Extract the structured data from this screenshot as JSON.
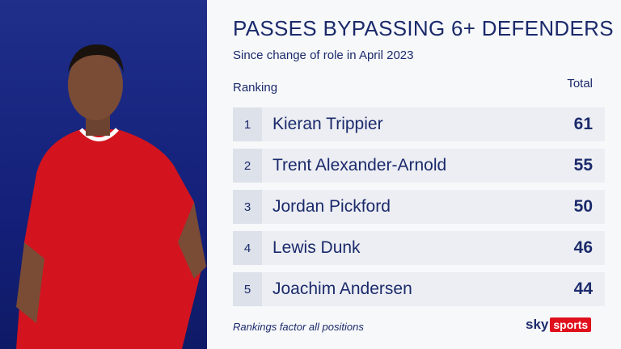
{
  "header": {
    "title": "PASSES BYPASSING 6+ DEFENDERS",
    "subtitle": "Since change of role in April 2023"
  },
  "table": {
    "columns": [
      "Ranking",
      "Total"
    ],
    "rows": [
      [
        1,
        "Kieran Trippier",
        61
      ],
      [
        2,
        "Trent Alexander-Arnold",
        55
      ],
      [
        3,
        "Jordan Pickford",
        50
      ],
      [
        4,
        "Lewis Dunk",
        46
      ],
      [
        5,
        "Joachim Andersen",
        44
      ]
    ]
  },
  "footer": {
    "note": "Rankings factor all positions",
    "logo": [
      "sky",
      "sports"
    ]
  }
}
